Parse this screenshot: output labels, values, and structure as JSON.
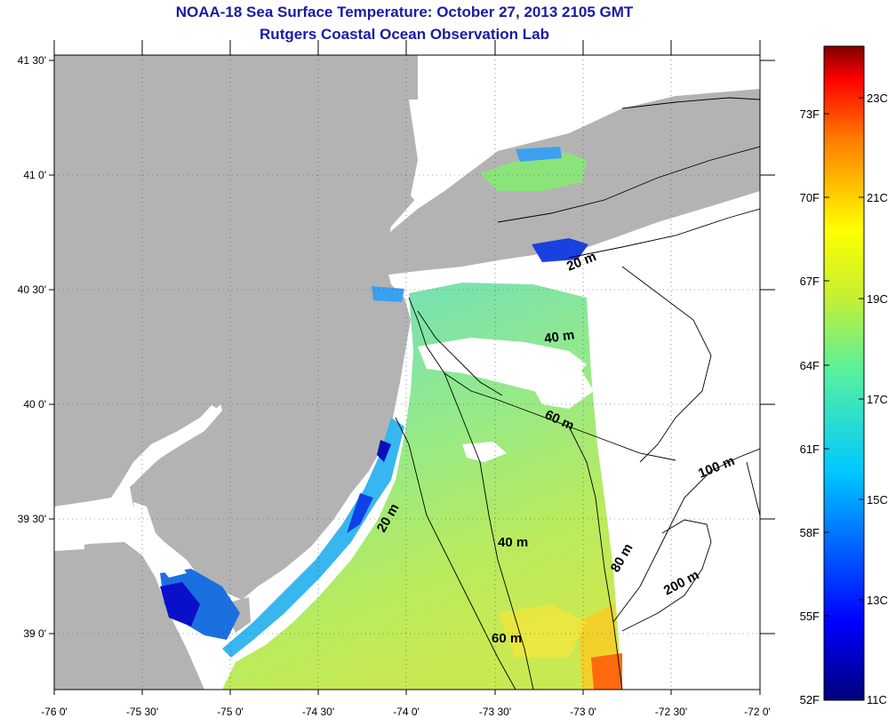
{
  "title": "NOAA-18 Sea Surface Temperature:  October 27, 2013 2105 GMT",
  "subtitle": "Rutgers Coastal Ocean Observation Lab",
  "lat_ticks": [
    "41 30'",
    "41 0'",
    "40 30'",
    "40 0'",
    "39 30'",
    "39 0'"
  ],
  "lon_ticks": [
    "-76 0'",
    "-75 30'",
    "-75 0'",
    "-74 30'",
    "-74 0'",
    "-73 30'",
    "-73 0'",
    "-72 30'",
    "-72 0'"
  ],
  "contour_labels": [
    "20 m",
    "40 m",
    "60 m",
    "20 m",
    "40 m",
    "60 m",
    "80 m",
    "100 m",
    "200 m"
  ],
  "colorbar": {
    "fahrenheit": [
      "73F",
      "70F",
      "67F",
      "64F",
      "61F",
      "58F",
      "55F",
      "52F"
    ],
    "celsius": [
      "23C",
      "21C",
      "19C",
      "17C",
      "15C",
      "13C",
      "11C"
    ]
  },
  "colors": {
    "land": "#b3b3b3",
    "title": "#1a1aa8",
    "water_nodata": "#ffffff"
  }
}
